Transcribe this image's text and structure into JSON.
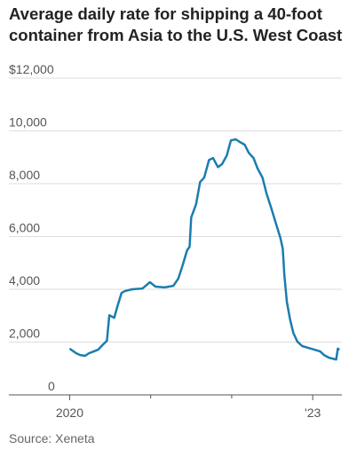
{
  "chart_data": {
    "type": "line",
    "title": "Average daily rate for shipping a 40-foot container from Asia to the U.S. West Coast",
    "source": "Source: Xeneta",
    "x": [
      2020.0,
      2020.08,
      2020.13,
      2020.19,
      2020.24,
      2020.3,
      2020.35,
      2020.41,
      2020.46,
      2020.49,
      2020.55,
      2020.59,
      2020.64,
      2020.68,
      2020.77,
      2020.9,
      2020.99,
      2021.06,
      2021.17,
      2021.28,
      2021.34,
      2021.39,
      2021.45,
      2021.48,
      2021.5,
      2021.56,
      2021.61,
      2021.66,
      2021.72,
      2021.77,
      2021.83,
      2021.88,
      2021.94,
      2021.99,
      2022.05,
      2022.1,
      2022.16,
      2022.21,
      2022.27,
      2022.32,
      2022.38,
      2022.43,
      2022.49,
      2022.54,
      2022.6,
      2022.63,
      2022.65,
      2022.68,
      2022.72,
      2022.76,
      2022.81,
      2022.87,
      2022.98,
      2023.09,
      2023.14,
      2023.2,
      2023.29,
      2023.31,
      2023.33
    ],
    "series": [
      {
        "color": "#1a7db0",
        "values": [
          1750,
          1580,
          1510,
          1480,
          1580,
          1650,
          1710,
          1900,
          2050,
          3020,
          2920,
          3360,
          3860,
          3930,
          4000,
          4030,
          4270,
          4100,
          4070,
          4130,
          4400,
          4870,
          5480,
          5610,
          6720,
          7220,
          8060,
          8230,
          8900,
          8970,
          8630,
          8740,
          9070,
          9640,
          9680,
          9580,
          9480,
          9170,
          8970,
          8570,
          8230,
          7630,
          7060,
          6550,
          5950,
          5540,
          4540,
          3530,
          2860,
          2350,
          2020,
          1850,
          1750,
          1650,
          1510,
          1410,
          1340,
          1750,
          1710
        ]
      }
    ],
    "xlim": [
      2019.25,
      2023.36
    ],
    "xticks": [
      2020,
      {
        "value": 2023,
        "label": "'23"
      }
    ],
    "xminorticks": [
      2021,
      2022
    ],
    "ylim": [
      0,
      12000
    ],
    "yticks": [
      0,
      {
        "value": 2000,
        "label": "2,000"
      },
      {
        "value": 4000,
        "label": "4,000"
      },
      {
        "value": 6000,
        "label": "6,000"
      },
      {
        "value": 8000,
        "label": "8,000"
      },
      {
        "value": 10000,
        "label": "10,000"
      },
      {
        "value": 12000,
        "label": "$12,000"
      }
    ],
    "grid": true
  }
}
